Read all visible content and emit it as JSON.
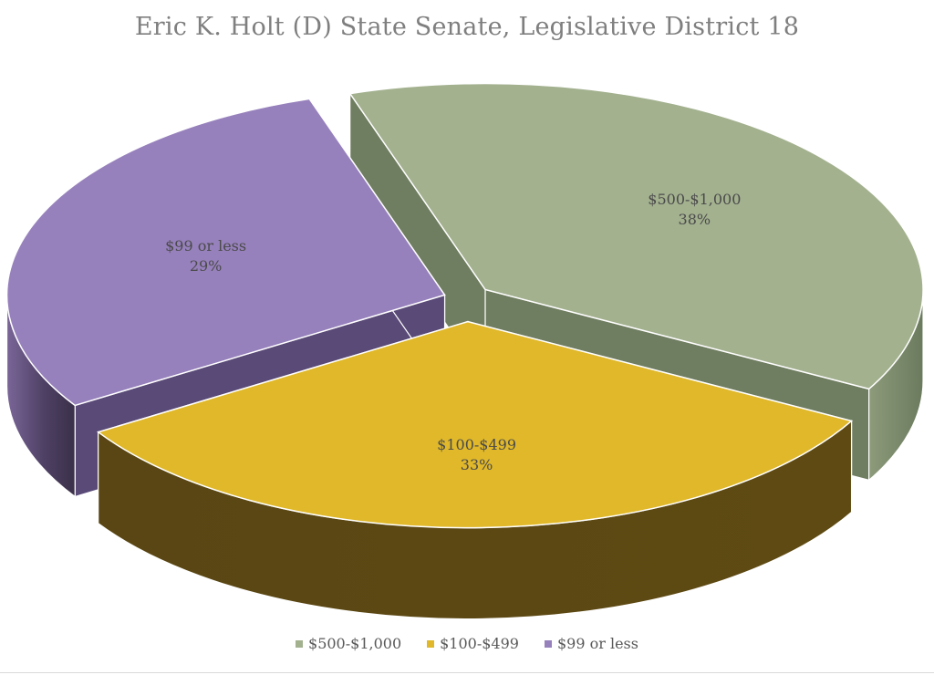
{
  "chart_data": {
    "type": "pie",
    "title": "Eric K. Holt (D) State Senate, Legislative District 18",
    "categories": [
      "$500-$1,000",
      "$100-$499",
      "$99 or less"
    ],
    "values": [
      38,
      33,
      29
    ],
    "value_labels": [
      "38%",
      "33%",
      "29%"
    ],
    "colors": [
      "#a3b18f",
      "#e0b82a",
      "#9781bc"
    ],
    "side_colors": [
      "#6f7d60",
      "#5c4814",
      "#5a4a78"
    ],
    "style": "3d-exploded",
    "legend_position": "bottom"
  }
}
